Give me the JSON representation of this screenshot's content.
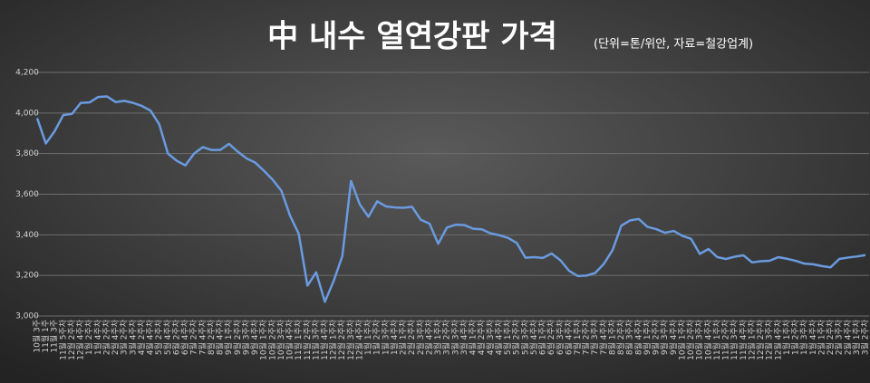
{
  "chart_data": {
    "type": "line",
    "title": "中 내수 열연강판 가격",
    "subtitle": "(단위=톤/위안, 자료=철강업계)",
    "categories": [
      "10월 3주",
      "11월 1주",
      "11월 3주",
      "11월 5주차",
      "12월 2주차",
      "12월 4주차",
      "1월 2주차",
      "1월 4주차",
      "2월 2주차",
      "2월 4주차",
      "3월 2주차",
      "3월 4주차",
      "4월 2주차",
      "4월 4주차",
      "5월 2주차",
      "5월 4주차",
      "6월 2주차",
      "6월 4주차",
      "7월 2주차",
      "7월 4주차",
      "8월 2주차",
      "8월 4주차",
      "9월 1주차",
      "9월 2주차",
      "9월 3주차",
      "9월 4주차",
      "10월 1주차",
      "10월 2주차",
      "10월 3주차",
      "10월 4주차",
      "11월 1주차",
      "11월 2주차",
      "11월 3주차",
      "11월 4주차",
      "12월 1주차",
      "12월 2주차",
      "12월 3주차",
      "12월 4주차",
      "1월 1주차",
      "1월 2주차",
      "1월 3주차",
      "1월 4주차",
      "2월 1주차",
      "2월 2주차",
      "2월 3주차",
      "2월 4주차",
      "3월 1주차",
      "3월 2주차",
      "3월 3주차",
      "3월 4주차",
      "4월 1주차",
      "4월 2주차",
      "4월 3주차",
      "4월 4주차",
      "5월 1주차",
      "5월 2주차",
      "5월 3주차",
      "5월 4주차",
      "6월 1주차",
      "6월 2주차",
      "6월 3주차",
      "6월 4주차",
      "7월 1주차",
      "7월 2주차",
      "7월 3주차",
      "7월 4주차",
      "8월 1주차",
      "8월 2주차",
      "8월 3주차",
      "8월 4주차",
      "9월 1주차",
      "9월 2주차",
      "9월 3주차",
      "9월 4주차",
      "10월 1주차",
      "10월 2주차",
      "10월 3주차",
      "10월 4주차",
      "11월 1주차",
      "11월 2주차",
      "11월 3주차",
      "11월 4주차",
      "12월 1주차",
      "12월 2주차",
      "12월 3주차",
      "12월 4주차",
      "1월 1주차",
      "1월 2주차",
      "1월 3주차",
      "1월 4주차",
      "2월 1주차",
      "2월 2주차",
      "2월 3주차",
      "2월 4주차",
      "3월 1주차",
      "3월 2주차"
    ],
    "series": [
      {
        "name": "열연강판 가격",
        "color": "#6a9be0",
        "values": [
          3975,
          3850,
          3910,
          3990,
          3996,
          4050,
          4052,
          4079,
          4082,
          4054,
          4060,
          4050,
          4035,
          4012,
          3945,
          3800,
          3765,
          3742,
          3800,
          3832,
          3818,
          3818,
          3848,
          3810,
          3777,
          3756,
          3716,
          3672,
          3618,
          3495,
          3405,
          3150,
          3215,
          3070,
          3172,
          3295,
          3665,
          3550,
          3489,
          3565,
          3540,
          3535,
          3533,
          3538,
          3474,
          3455,
          3356,
          3436,
          3450,
          3448,
          3430,
          3427,
          3407,
          3398,
          3385,
          3360,
          3287,
          3290,
          3286,
          3308,
          3275,
          3223,
          3197,
          3199,
          3212,
          3257,
          3325,
          3445,
          3471,
          3478,
          3439,
          3428,
          3410,
          3419,
          3395,
          3380,
          3306,
          3330,
          3290,
          3281,
          3292,
          3299,
          3264,
          3270,
          3272,
          3290,
          3282,
          3272,
          3258,
          3255,
          3246,
          3240,
          3281,
          3288,
          3293,
          3300
        ]
      }
    ],
    "ylim": [
      3000,
      4200
    ],
    "yticks": [
      {
        "value": 3000,
        "label": "3,000"
      },
      {
        "value": 3200,
        "label": "3,200"
      },
      {
        "value": 3400,
        "label": "3,400"
      },
      {
        "value": 3600,
        "label": "3,600"
      },
      {
        "value": 3800,
        "label": "3,800"
      },
      {
        "value": 4000,
        "label": "4,000"
      },
      {
        "value": 4200,
        "label": "4,200"
      }
    ],
    "grid": true
  }
}
